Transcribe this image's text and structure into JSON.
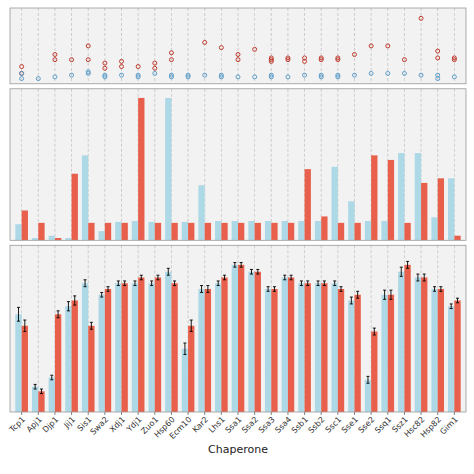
{
  "chart_data": [
    {
      "type": "scatter",
      "xlim": [
        -0.7,
        26.7
      ],
      "xticks": [
        0,
        1,
        2,
        3,
        4,
        5,
        6,
        7,
        8,
        9,
        10,
        11,
        12,
        13,
        14,
        15,
        16,
        17,
        18,
        19,
        20,
        21,
        22,
        23,
        24,
        25,
        26
      ],
      "ylim": [
        0.48,
        0.92
      ],
      "grid": true,
      "tick_labels": false,
      "series": [
        {
          "color": "#c0392b",
          "marker": "circle",
          "x": [
            0,
            0,
            2,
            2,
            3,
            4,
            4,
            5,
            5,
            6,
            6,
            7,
            8,
            8,
            9,
            9,
            11,
            12,
            13,
            13,
            14,
            15,
            15,
            15,
            16,
            16,
            17,
            17,
            18,
            18,
            19,
            19,
            20,
            21,
            22,
            23,
            24,
            25,
            25,
            26,
            26
          ],
          "values": [
            0.58,
            0.54,
            0.62,
            0.65,
            0.62,
            0.7,
            0.62,
            0.6,
            0.57,
            0.61,
            0.58,
            0.58,
            0.6,
            0.57,
            0.66,
            0.62,
            0.72,
            0.69,
            0.62,
            0.65,
            0.68,
            0.62,
            0.63,
            0.61,
            0.62,
            0.63,
            0.63,
            0.61,
            0.63,
            0.62,
            0.62,
            0.63,
            0.65,
            0.7,
            0.7,
            0.62,
            0.86,
            0.67,
            0.63,
            0.62,
            0.63
          ]
        },
        {
          "color": "#5b9dc9",
          "marker": "circle",
          "x": [
            0,
            0,
            1,
            2,
            3,
            4,
            4,
            5,
            5,
            6,
            7,
            7,
            8,
            9,
            9,
            10,
            10,
            11,
            12,
            12,
            13,
            14,
            15,
            15,
            16,
            17,
            18,
            18,
            19,
            19,
            20,
            21,
            22,
            23,
            24,
            25,
            25,
            26
          ],
          "values": [
            0.54,
            0.51,
            0.51,
            0.52,
            0.53,
            0.55,
            0.54,
            0.53,
            0.52,
            0.53,
            0.53,
            0.52,
            0.54,
            0.53,
            0.52,
            0.53,
            0.52,
            0.53,
            0.52,
            0.53,
            0.52,
            0.52,
            0.52,
            0.53,
            0.52,
            0.53,
            0.52,
            0.53,
            0.52,
            0.53,
            0.53,
            0.54,
            0.54,
            0.54,
            0.53,
            0.51,
            0.53,
            0.52
          ]
        }
      ]
    },
    {
      "type": "bar",
      "categories": [
        "Tcp1",
        "Apj1",
        "Djp1",
        "Jij1",
        "Sis1",
        "Swa2",
        "Xdj1",
        "Ydj1",
        "Zuo1",
        "Hsp60",
        "Ecm10",
        "Kar2",
        "Lhs1",
        "Ssa1",
        "Ssa2",
        "Ssa3",
        "Ssa4",
        "Ssb1",
        "Ssb2",
        "Ssc1",
        "Sse1",
        "Sse2",
        "Ssq1",
        "Ssz1",
        "Hsc82",
        "Hsp82",
        "Gim1"
      ],
      "ylim": [
        0,
        3.3
      ],
      "grid": true,
      "tick_labels": false,
      "series": [
        {
          "color": "#add8e6",
          "values": [
            0.35,
            0.05,
            0.1,
            0.05,
            1.85,
            0.2,
            0.4,
            0.42,
            0.4,
            3.1,
            0.4,
            1.2,
            0.42,
            0.42,
            0.42,
            0.42,
            0.42,
            0.42,
            0.42,
            1.6,
            0.85,
            0.42,
            0.42,
            1.9,
            1.9,
            0.5,
            1.35
          ]
        },
        {
          "color": "#e8604c",
          "values": [
            0.65,
            0.38,
            0.05,
            1.45,
            0.38,
            0.38,
            0.38,
            3.1,
            0.38,
            0.38,
            0.38,
            0.38,
            0.38,
            0.38,
            0.38,
            0.38,
            0.38,
            1.55,
            0.52,
            0.38,
            0.38,
            1.85,
            1.75,
            0.38,
            1.25,
            1.35,
            0.1
          ]
        }
      ]
    },
    {
      "type": "bar",
      "categories": [
        "Tcp1",
        "Apj1",
        "Djp1",
        "Jij1",
        "Sis1",
        "Swa2",
        "Xdj1",
        "Ydj1",
        "Zuo1",
        "Hsp60",
        "Ecm10",
        "Kar2",
        "Lhs1",
        "Ssa1",
        "Ssa2",
        "Ssa3",
        "Ssa4",
        "Ssb1",
        "Ssb2",
        "Ssc1",
        "Sse1",
        "Sse2",
        "Ssq1",
        "Ssz1",
        "Hsc82",
        "Hsp82",
        "Gim1"
      ],
      "x_label": "Chaperone",
      "ylim": [
        0.6,
        2.05
      ],
      "grid": true,
      "tick_labels": "x",
      "series": [
        {
          "color": "#add8e6",
          "values": [
            1.45,
            0.82,
            0.9,
            1.52,
            1.72,
            1.62,
            1.72,
            1.72,
            1.72,
            1.82,
            1.15,
            1.67,
            1.72,
            1.88,
            1.82,
            1.67,
            1.77,
            1.72,
            1.72,
            1.72,
            1.57,
            0.88,
            1.62,
            1.82,
            1.77,
            1.67,
            1.52
          ],
          "errors": [
            0.06,
            0.02,
            0.02,
            0.04,
            0.03,
            0.02,
            0.02,
            0.02,
            0.02,
            0.03,
            0.05,
            0.03,
            0.02,
            0.02,
            0.02,
            0.02,
            0.02,
            0.02,
            0.02,
            0.02,
            0.03,
            0.03,
            0.04,
            0.04,
            0.03,
            0.02,
            0.02
          ]
        },
        {
          "color": "#e8604c",
          "values": [
            1.35,
            0.78,
            1.45,
            1.57,
            1.35,
            1.67,
            1.72,
            1.77,
            1.77,
            1.72,
            1.35,
            1.67,
            1.77,
            1.88,
            1.82,
            1.67,
            1.77,
            1.72,
            1.72,
            1.67,
            1.62,
            1.3,
            1.62,
            1.88,
            1.77,
            1.67,
            1.57
          ],
          "errors": [
            0.05,
            0.02,
            0.03,
            0.04,
            0.03,
            0.02,
            0.02,
            0.02,
            0.02,
            0.02,
            0.05,
            0.03,
            0.02,
            0.02,
            0.02,
            0.02,
            0.02,
            0.02,
            0.02,
            0.02,
            0.03,
            0.03,
            0.04,
            0.03,
            0.03,
            0.02,
            0.02
          ]
        }
      ]
    }
  ]
}
